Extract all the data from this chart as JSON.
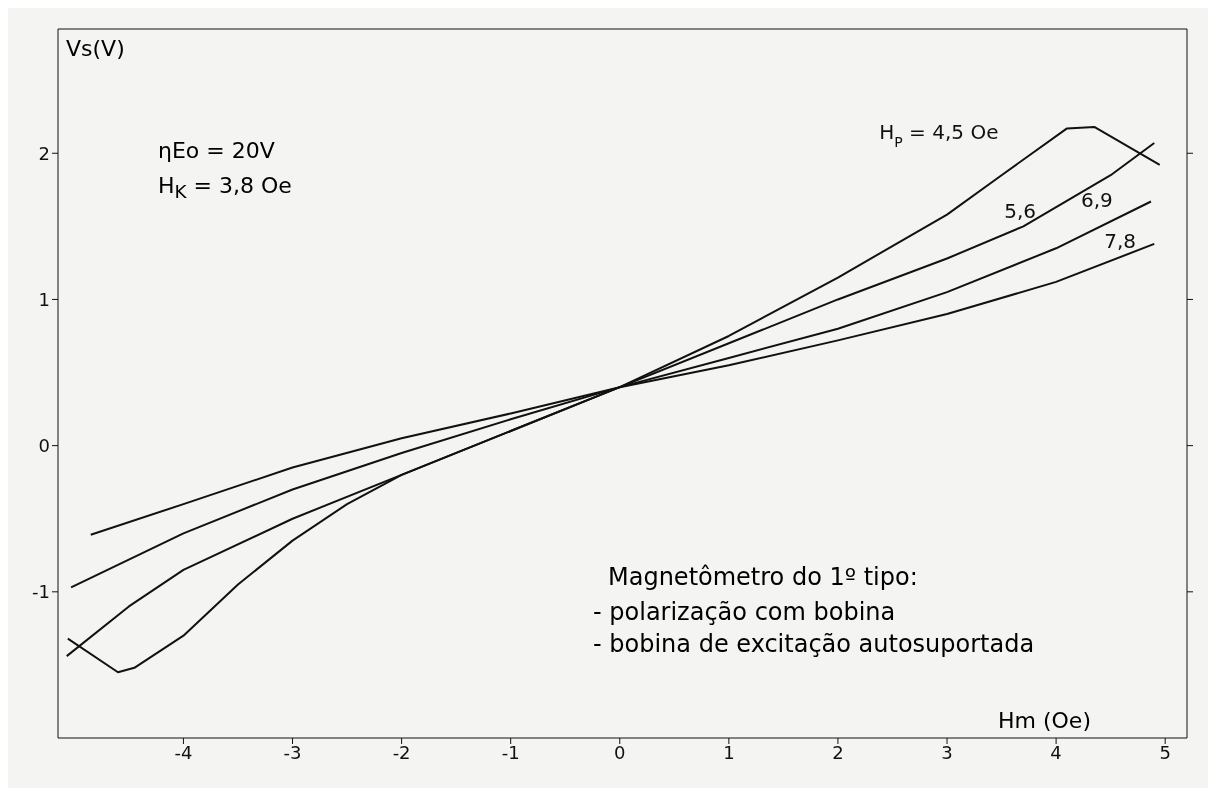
{
  "chart_data": {
    "type": "line",
    "xlabel": "Hm (Oe)",
    "ylabel": "Vs(V)",
    "xlim": [
      -5.15,
      5.2
    ],
    "ylim": [
      -2,
      2.85
    ],
    "xticks": [
      -4,
      -3,
      -2,
      -1,
      0,
      1,
      2,
      3,
      4,
      5
    ],
    "yticks": [
      -1,
      0,
      1,
      2
    ],
    "grid": false,
    "legend": false,
    "marker": "none",
    "line_style": "solid",
    "annotations": [
      "ηEo = 20V",
      "H$_{K}$ = 3,8 Oe",
      "Magnetômetro do 1º tipo:",
      "- polarização com bobina",
      "- bobina de excitação autosuportada"
    ],
    "series": [
      {
        "name": "H$_{P}$ = 4,5 Oe",
        "color": "#111111",
        "x": [
          -5.06,
          -4.6,
          -4.45,
          -4,
          -3.5,
          -3,
          -2.5,
          -2,
          -1,
          0,
          1,
          2,
          3,
          3.5,
          4.1,
          4.35,
          4.95
        ],
        "values": [
          -1.32,
          -1.55,
          -1.52,
          -1.3,
          -0.95,
          -0.65,
          -0.4,
          -0.2,
          0.1,
          0.4,
          0.75,
          1.15,
          1.58,
          1.85,
          2.17,
          2.18,
          1.92
        ]
      },
      {
        "name": "5,6",
        "color": "#111111",
        "x": [
          -5.07,
          -4.5,
          -4,
          -3,
          -2,
          -1,
          0,
          1,
          2,
          3,
          3.7,
          4.5,
          4.9
        ],
        "values": [
          -1.44,
          -1.1,
          -0.85,
          -0.5,
          -0.2,
          0.1,
          0.4,
          0.7,
          1.0,
          1.28,
          1.5,
          1.85,
          2.07
        ]
      },
      {
        "name": "6,9",
        "color": "#111111",
        "x": [
          -5.03,
          -4,
          -3,
          -2,
          -1,
          0,
          1,
          2,
          3,
          4,
          4.87
        ],
        "values": [
          -0.97,
          -0.6,
          -0.3,
          -0.05,
          0.18,
          0.4,
          0.6,
          0.8,
          1.05,
          1.35,
          1.67
        ]
      },
      {
        "name": "7,8",
        "color": "#111111",
        "x": [
          -4.85,
          -4,
          -3,
          -2,
          -1,
          0,
          1,
          2,
          3,
          4,
          4.9
        ],
        "values": [
          -0.61,
          -0.4,
          -0.15,
          0.05,
          0.22,
          0.4,
          0.55,
          0.72,
          0.9,
          1.12,
          1.38
        ]
      }
    ]
  }
}
